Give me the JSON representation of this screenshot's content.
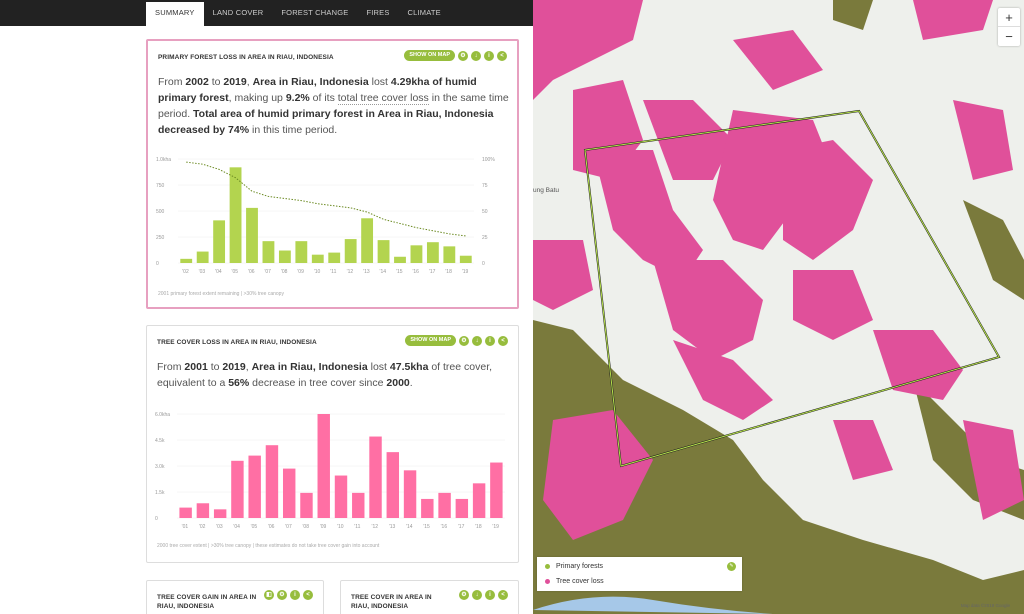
{
  "tabs": [
    "SUMMARY",
    "LAND COVER",
    "FOREST CHANGE",
    "FIRES",
    "CLIMATE"
  ],
  "w1": {
    "title": "PRIMARY FOREST LOSS IN AREA IN RIAU, INDONESIA",
    "show_on_map": "SHOW ON MAP",
    "s": [
      "From ",
      "2002",
      " to ",
      "2019",
      ", ",
      "Area in Riau, Indonesia",
      " lost ",
      "4.29kha of humid primary forest",
      ", making up ",
      "9.2%",
      " of its ",
      "total tree cover loss",
      " in the same time period. ",
      "Total area of humid primary forest in Area in Riau, Indonesia decreased by",
      " ",
      "74%",
      " in this time period."
    ],
    "caption": "2001 primary forest extent remaining | >30% tree canopy"
  },
  "w2": {
    "title": "TREE COVER LOSS IN AREA IN RIAU, INDONESIA",
    "show_on_map": "SHOW ON MAP",
    "s": [
      "From ",
      "2001",
      " to ",
      "2019",
      ", ",
      "Area in Riau, Indonesia",
      " lost ",
      "47.5kha",
      " of tree cover, equivalent to a ",
      "56%",
      " decrease in tree cover since ",
      "2000",
      "."
    ],
    "caption": "2000 tree cover extent | >30% tree canopy | these estimates do not take tree cover gain into account"
  },
  "w3": {
    "title": "TREE COVER GAIN IN AREA IN RIAU, INDONESIA"
  },
  "w4": {
    "title": "TREE COVER IN AREA IN RIAU, INDONESIA"
  },
  "map": {
    "place_label": "ung Batu",
    "zoom_in": "+",
    "zoom_out": "−",
    "legend": [
      "Primary forests",
      "Tree cover loss"
    ],
    "attribution": "Map data ©2019 Google"
  },
  "colors": {
    "accent": "#97bd3d",
    "loss": "#ff6fa4",
    "primary_loss": "#b3d44f",
    "loss_map": "#e0509a"
  },
  "chart_data": [
    {
      "type": "bar",
      "title": "",
      "categories": [
        "'02",
        "'03",
        "'04",
        "'05",
        "'06",
        "'07",
        "'08",
        "'09",
        "'10",
        "'11",
        "'12",
        "'13",
        "'14",
        "'15",
        "'16",
        "'17",
        "'18",
        "'19"
      ],
      "series": [
        {
          "values": [
            40,
            110,
            410,
            920,
            530,
            210,
            120,
            210,
            80,
            100,
            230,
            430,
            220,
            60,
            170,
            200,
            160,
            70
          ]
        },
        {
          "type": "line",
          "values": [
            97,
            95,
            90,
            82,
            69,
            64,
            62,
            60,
            57,
            55,
            53,
            49,
            42,
            38,
            34,
            31,
            28,
            26
          ]
        }
      ],
      "y_ticks": [
        "0",
        "250",
        "500",
        "750",
        "1.0kha"
      ],
      "y2_ticks": [
        "0",
        "25",
        "50",
        "75",
        "100%"
      ],
      "ylim": [
        0,
        1000
      ],
      "y2lim": [
        0,
        100
      ]
    },
    {
      "type": "bar",
      "title": "",
      "categories": [
        "'01",
        "'02",
        "'03",
        "'04",
        "'05",
        "'06",
        "'07",
        "'08",
        "'09",
        "'10",
        "'11",
        "'12",
        "'13",
        "'14",
        "'15",
        "'16",
        "'17",
        "'18",
        "'19"
      ],
      "series": [
        {
          "values": [
            600,
            850,
            500,
            3300,
            3600,
            4200,
            2850,
            1450,
            6000,
            2450,
            1450,
            4700,
            3800,
            2750,
            1100,
            1450,
            1100,
            2000,
            3200
          ]
        }
      ],
      "y_ticks": [
        "0",
        "1.5k",
        "3.0k",
        "4.5k",
        "6.0kha"
      ],
      "ylim": [
        0,
        6000
      ]
    }
  ]
}
